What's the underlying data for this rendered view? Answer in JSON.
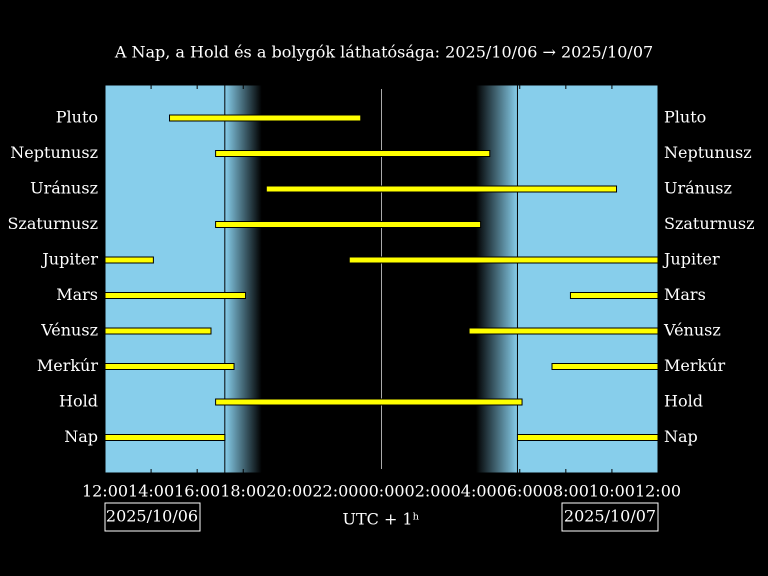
{
  "chart_data": {
    "type": "range",
    "title": "A Nap, a Hold és a bolygók láthatósága: 2025/10/06 → 2025/10/07",
    "xlabel": "UTC + 1ʰ",
    "date_labels": [
      "2025/10/06",
      "2025/10/07"
    ],
    "categories": [
      "Pluto",
      "Neptunusz",
      "Uránusz",
      "Szaturnusz",
      "Jupiter",
      "Mars",
      "Vénusz",
      "Merkúr",
      "Hold",
      "Nap"
    ],
    "intervals": [
      [
        [
          14.8,
          23.1
        ]
      ],
      [
        [
          16.8,
          28.7
        ]
      ],
      [
        [
          19.0,
          34.2
        ]
      ],
      [
        [
          16.8,
          28.3
        ]
      ],
      [
        [
          12,
          14.1
        ],
        [
          22.6,
          36
        ]
      ],
      [
        [
          12,
          18.1
        ],
        [
          32.2,
          36
        ]
      ],
      [
        [
          12,
          16.6
        ],
        [
          27.8,
          36
        ]
      ],
      [
        [
          12,
          17.6
        ],
        [
          31.4,
          36
        ]
      ],
      [
        [
          16.8,
          30.1
        ]
      ],
      [
        [
          12,
          17.2
        ],
        [
          29.9,
          36
        ]
      ]
    ],
    "color": "#ffff00",
    "day_color": "#87ceeb",
    "night_color": "#000000",
    "sunset": 17.2,
    "dusk": 18.8,
    "dawn": 28.1,
    "sunrise": 29.9,
    "xlim": [
      12,
      36
    ],
    "xticks": [
      {
        "value": 12,
        "label": "12:00"
      },
      {
        "value": 14,
        "label": "14:00"
      },
      {
        "value": 16,
        "label": "16:00"
      },
      {
        "value": 18,
        "label": "18:00"
      },
      {
        "value": 20,
        "label": "20:00"
      },
      {
        "value": 22,
        "label": "22:00"
      },
      {
        "value": 24,
        "label": "00:00"
      },
      {
        "value": 26,
        "label": "02:00"
      },
      {
        "value": 28,
        "label": "04:00"
      },
      {
        "value": 30,
        "label": "06:00"
      },
      {
        "value": 32,
        "label": "08:00"
      },
      {
        "value": 34,
        "label": "10:00"
      },
      {
        "value": 36,
        "label": "12:00"
      }
    ],
    "midnight": 24
  }
}
